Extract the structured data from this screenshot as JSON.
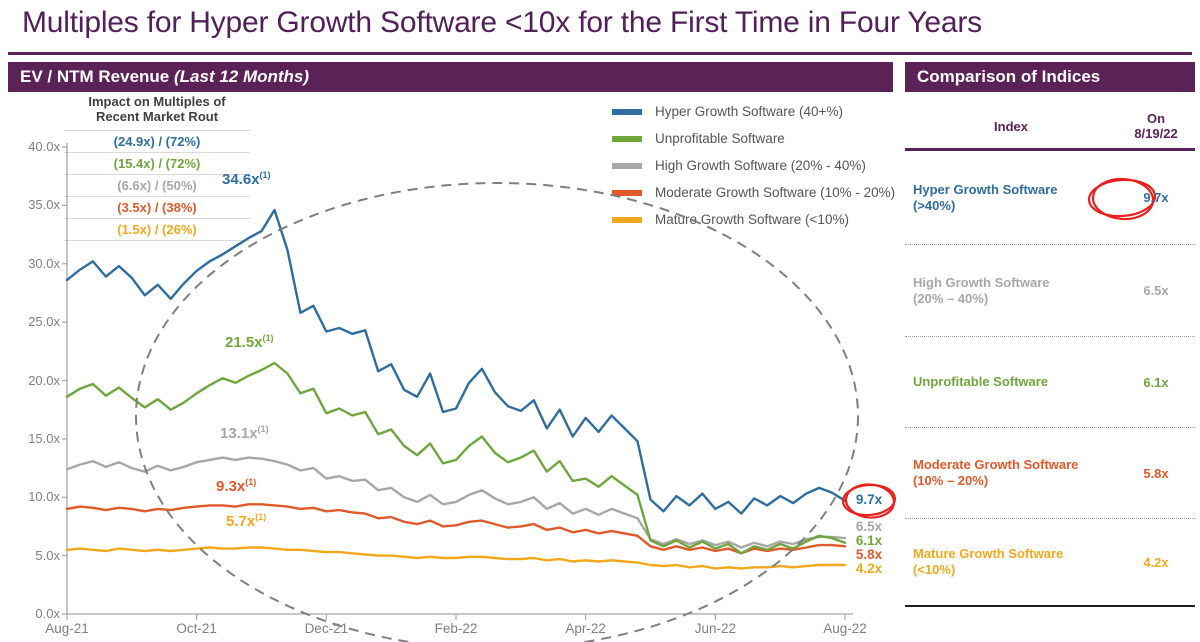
{
  "page": {
    "title": "Multiples for Hyper Growth Software <10x for the First Time in Four Years"
  },
  "colors": {
    "purple": "#5b2257",
    "title_purple": "#522058",
    "red_marker": "#e8211d",
    "blue": "#2e6d9e",
    "green": "#70a53c",
    "gray": "#a7a7a7",
    "orange": "#e0592b",
    "yellow": "#f2a81d"
  },
  "left_panel": {
    "header_bold": "EV / NTM Revenue",
    "header_italic": " (Last 12 Months)"
  },
  "impact_box": {
    "title_line1": "Impact on Multiples of",
    "title_line2": "Recent Market Rout",
    "rows": [
      {
        "text": "(24.9x) / (72%)",
        "color": "#2e6d9e"
      },
      {
        "text": "(15.4x) / (72%)",
        "color": "#70a53c"
      },
      {
        "text": "(6.6x) / (50%)",
        "color": "#a7a7a7"
      },
      {
        "text": "(3.5x) / (38%)",
        "color": "#e0592b"
      },
      {
        "text": "(1.5x) / (26%)",
        "color": "#f2a81d"
      }
    ]
  },
  "legend": {
    "items": [
      {
        "label": "Hyper Growth Software (40+%)",
        "color": "#2e6d9e"
      },
      {
        "label": "Unprofitable Software",
        "color": "#70a53c"
      },
      {
        "label": "High Growth Software (20% - 40%)",
        "color": "#a7a7a7"
      },
      {
        "label": "Moderate Growth Software (10% - 20%)",
        "color": "#e0592b"
      },
      {
        "label": "Mature Growth Software (<10%)",
        "color": "#f2a81d"
      }
    ]
  },
  "chart_data": {
    "type": "line",
    "title": "EV / NTM Revenue (Last 12 Months)",
    "ylabel": "EV / NTM Revenue multiple",
    "ylim": [
      0,
      40
    ],
    "grid": false,
    "x_tick_labels": [
      "Aug-21",
      "Oct-21",
      "Dec-21",
      "Feb-22",
      "Apr-22",
      "Jun-22",
      "Aug-22"
    ],
    "y_tick_labels": [
      "0.0x",
      "5.0x",
      "10.0x",
      "15.0x",
      "20.0x",
      "25.0x",
      "30.0x",
      "35.0x",
      "40.0x"
    ],
    "series": [
      {
        "name": "Hyper Growth Software (40+%)",
        "color": "#2e6d9e",
        "values": [
          28.6,
          29.5,
          30.2,
          28.9,
          29.8,
          28.8,
          27.3,
          28.2,
          27.0,
          28.3,
          29.4,
          30.2,
          30.8,
          31.5,
          32.2,
          32.8,
          34.6,
          31.2,
          25.8,
          26.4,
          24.2,
          24.5,
          24.0,
          24.3,
          20.8,
          21.4,
          19.2,
          18.6,
          20.6,
          17.3,
          17.6,
          19.8,
          21.0,
          19.0,
          17.8,
          17.4,
          18.3,
          15.9,
          17.5,
          15.2,
          16.8,
          15.6,
          17.0,
          15.9,
          14.8,
          9.8,
          8.8,
          10.1,
          9.3,
          10.3,
          9.0,
          9.6,
          8.6,
          9.9,
          9.3,
          10.1,
          9.5,
          10.3,
          10.8,
          10.4,
          9.7
        ]
      },
      {
        "name": "Unprofitable Software",
        "color": "#70a53c",
        "values": [
          18.6,
          19.3,
          19.7,
          18.7,
          19.4,
          18.5,
          17.7,
          18.4,
          17.5,
          18.1,
          18.9,
          19.6,
          20.2,
          19.8,
          20.4,
          20.9,
          21.5,
          20.6,
          18.9,
          19.3,
          17.2,
          17.6,
          17.0,
          17.3,
          15.4,
          15.8,
          14.4,
          13.6,
          14.6,
          12.9,
          13.2,
          14.4,
          15.2,
          13.8,
          13.0,
          13.4,
          14.0,
          12.2,
          13.1,
          11.4,
          11.6,
          10.9,
          11.8,
          11.0,
          10.2,
          6.3,
          5.8,
          6.3,
          5.7,
          6.2,
          5.6,
          6.0,
          5.2,
          5.8,
          5.5,
          6.0,
          5.6,
          6.2,
          6.7,
          6.5,
          6.1
        ]
      },
      {
        "name": "High Growth Software (20% - 40%)",
        "color": "#a7a7a7",
        "values": [
          12.4,
          12.8,
          13.1,
          12.6,
          13.0,
          12.5,
          12.2,
          12.7,
          12.3,
          12.6,
          13.0,
          13.2,
          13.4,
          13.2,
          13.4,
          13.3,
          13.1,
          12.8,
          12.3,
          12.5,
          11.6,
          11.8,
          11.4,
          11.5,
          10.6,
          10.8,
          10.0,
          9.6,
          10.2,
          9.4,
          9.6,
          10.2,
          10.6,
          9.9,
          9.4,
          9.6,
          10.0,
          9.0,
          9.5,
          8.6,
          9.0,
          8.5,
          9.0,
          8.6,
          8.2,
          6.4,
          6.0,
          6.4,
          6.0,
          6.3,
          5.9,
          6.2,
          5.7,
          6.1,
          5.8,
          6.2,
          6.0,
          6.4,
          6.6,
          6.6,
          6.5
        ]
      },
      {
        "name": "Moderate Growth Software (10% - 20%)",
        "color": "#e0592b",
        "values": [
          9.0,
          9.2,
          9.1,
          8.9,
          9.1,
          9.0,
          8.8,
          9.0,
          8.9,
          9.1,
          9.2,
          9.3,
          9.3,
          9.2,
          9.4,
          9.4,
          9.3,
          9.2,
          9.0,
          9.1,
          8.8,
          8.9,
          8.7,
          8.6,
          8.2,
          8.3,
          7.9,
          7.7,
          8.0,
          7.5,
          7.6,
          7.9,
          8.0,
          7.7,
          7.4,
          7.5,
          7.7,
          7.2,
          7.4,
          7.0,
          7.2,
          6.9,
          7.1,
          6.9,
          6.7,
          5.8,
          5.5,
          5.8,
          5.5,
          5.7,
          5.4,
          5.6,
          5.2,
          5.6,
          5.4,
          5.6,
          5.5,
          5.7,
          5.9,
          5.9,
          5.8
        ]
      },
      {
        "name": "Mature Growth Software (<10%)",
        "color": "#f2a81d",
        "values": [
          5.5,
          5.6,
          5.5,
          5.4,
          5.6,
          5.5,
          5.4,
          5.5,
          5.4,
          5.5,
          5.6,
          5.7,
          5.6,
          5.6,
          5.7,
          5.7,
          5.6,
          5.5,
          5.5,
          5.4,
          5.3,
          5.3,
          5.2,
          5.1,
          5.0,
          5.0,
          4.9,
          4.8,
          4.9,
          4.8,
          4.8,
          4.9,
          4.9,
          4.8,
          4.7,
          4.7,
          4.8,
          4.6,
          4.7,
          4.5,
          4.6,
          4.5,
          4.6,
          4.5,
          4.4,
          4.2,
          4.1,
          4.2,
          4.0,
          4.1,
          3.9,
          4.0,
          3.9,
          4.0,
          4.0,
          4.1,
          4.0,
          4.1,
          4.2,
          4.2,
          4.2
        ]
      }
    ],
    "annotations": [
      {
        "text": "34.6x",
        "sup": "(1)",
        "color": "#2e6d9e"
      },
      {
        "text": "21.5x",
        "sup": "(1)",
        "color": "#70a53c"
      },
      {
        "text": "13.1x",
        "sup": "(1)",
        "color": "#a7a7a7"
      },
      {
        "text": "9.3x",
        "sup": "(1)",
        "color": "#e0592b"
      },
      {
        "text": "5.7x",
        "sup": "(1)",
        "color": "#f2a81d"
      }
    ],
    "end_labels": [
      {
        "text": "9.7x",
        "color": "#2e6d9e",
        "circled": true
      },
      {
        "text": "6.5x",
        "color": "#a7a7a7",
        "circled": false
      },
      {
        "text": "6.1x",
        "color": "#70a53c",
        "circled": false
      },
      {
        "text": "5.8x",
        "color": "#e0592b",
        "circled": false
      },
      {
        "text": "4.2x",
        "color": "#f2a81d",
        "circled": false
      }
    ]
  },
  "right_panel": {
    "header": "Comparison of Indices",
    "col_index": "Index",
    "col_on_line1": "On",
    "col_on_line2": "8/19/22",
    "rows": [
      {
        "name_line1": "Hyper Growth Software",
        "name_line2": "(>40%)",
        "value": "9.7x",
        "color": "#2e6d9e",
        "circled": true
      },
      {
        "name_line1": "High Growth Software",
        "name_line2": "(20% – 40%)",
        "value": "6.5x",
        "color": "#a7a7a7",
        "circled": false
      },
      {
        "name_line1": "Unprofitable Software",
        "name_line2": "",
        "value": "6.1x",
        "color": "#70a53c",
        "circled": false
      },
      {
        "name_line1": "Moderate Growth Software",
        "name_line2": "(10% – 20%)",
        "value": "5.8x",
        "color": "#e0592b",
        "circled": false
      },
      {
        "name_line1": "Mature Growth Software",
        "name_line2": "(<10%)",
        "value": "4.2x",
        "color": "#f2a81d",
        "circled": false
      }
    ]
  }
}
